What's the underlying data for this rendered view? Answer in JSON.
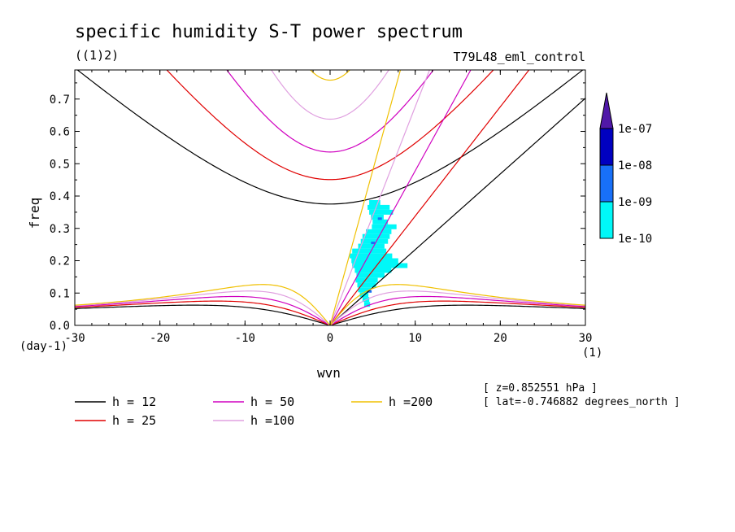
{
  "chart_data": {
    "type": "line",
    "title": "specific humidity S-T power spectrum",
    "subtitle_left": "((1)2)",
    "subtitle_right": "T79L48_eml_control",
    "xlabel": "wvn",
    "ylabel": "freq",
    "x_unit": "(1)",
    "y_unit": "(day-1)",
    "xlim": [
      -30,
      30
    ],
    "ylim": [
      0,
      0.79
    ],
    "x_ticks": [
      -30,
      -20,
      -10,
      0,
      10,
      20,
      30
    ],
    "x_tick_labels": [
      "-30",
      "-20",
      "-10",
      "0",
      "10",
      "20",
      "30"
    ],
    "y_ticks": [
      0,
      0.1,
      0.2,
      0.3,
      0.4,
      0.5,
      0.6,
      0.7
    ],
    "y_tick_labels": [
      "0.0",
      "0.1",
      "0.2",
      "0.3",
      "0.4",
      "0.5",
      "0.6",
      "0.7"
    ],
    "grid": false,
    "series": [
      {
        "name": "h = 12",
        "h": 12,
        "color": "#000000"
      },
      {
        "name": "h = 25",
        "h": 25,
        "color": "#e00000"
      },
      {
        "name": "h = 50",
        "h": 50,
        "color": "#d000c0"
      },
      {
        "name": "h =100",
        "h": 100,
        "color": "#e0a0e0"
      },
      {
        "name": "h =200",
        "h": 200,
        "color": "#f0c000"
      }
    ],
    "colorbar": {
      "labels": [
        "1e-07",
        "1e-08",
        "1e-09",
        "1e-10"
      ],
      "colors": [
        "#5018a8",
        "#0000c0",
        "#1870f8",
        "#00f8f8"
      ]
    },
    "shaded_region": {
      "level": "1e-10",
      "color": "#00f8f8",
      "rows": [
        [
          0.38,
          4.6,
          5.9
        ],
        [
          0.365,
          4.4,
          7.0
        ],
        [
          0.35,
          4.6,
          7.4
        ],
        [
          0.335,
          4.8,
          6.3
        ],
        [
          0.32,
          5.0,
          6.8
        ],
        [
          0.305,
          4.9,
          7.8
        ],
        [
          0.29,
          4.2,
          7.2
        ],
        [
          0.275,
          3.8,
          7.0
        ],
        [
          0.26,
          3.6,
          6.8
        ],
        [
          0.245,
          3.3,
          6.4
        ],
        [
          0.23,
          2.6,
          6.6
        ],
        [
          0.215,
          2.3,
          7.3
        ],
        [
          0.2,
          2.5,
          8.0
        ],
        [
          0.185,
          2.6,
          9.1
        ],
        [
          0.17,
          2.9,
          7.2
        ],
        [
          0.155,
          3.1,
          6.4
        ],
        [
          0.14,
          3.0,
          5.6
        ],
        [
          0.125,
          3.2,
          5.4
        ],
        [
          0.11,
          3.3,
          4.8
        ],
        [
          0.095,
          3.5,
          4.5
        ],
        [
          0.08,
          3.8,
          4.6
        ],
        [
          0.065,
          4.0,
          4.7
        ]
      ]
    },
    "notes": [
      "[ z=0.852551 hPa ]",
      "[ lat=-0.746882 degrees_north ]"
    ]
  }
}
